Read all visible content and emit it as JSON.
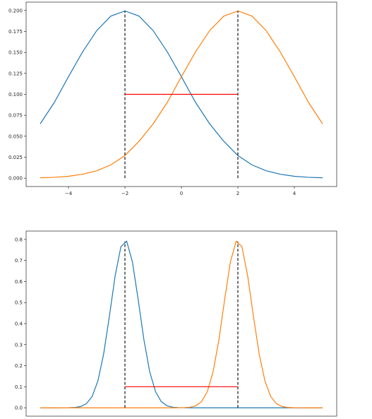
{
  "chart_data": [
    {
      "type": "line",
      "xlim": [
        -5.5,
        5.5
      ],
      "ylim": [
        -0.01,
        0.21
      ],
      "xticks": [
        -4,
        -2,
        0,
        2,
        4
      ],
      "yticks": [
        0.0,
        0.025,
        0.05,
        0.075,
        0.1,
        0.125,
        0.15,
        0.175,
        0.2
      ],
      "ytick_labels": [
        "0.000",
        "0.025",
        "0.050",
        "0.075",
        "0.100",
        "0.125",
        "0.150",
        "0.175",
        "0.200"
      ],
      "xtick_labels": [
        "−4",
        "−2",
        "0",
        "2",
        "4"
      ],
      "grid": false,
      "series": [
        {
          "color": "#1f77b4",
          "distribution": "normal",
          "mean": -2,
          "std": 2,
          "x": [
            -5.0,
            -4.5,
            -4.0,
            -3.5,
            -3.0,
            -2.5,
            -2.0,
            -1.5,
            -1.0,
            -0.5,
            0.0,
            0.5,
            1.0,
            1.5,
            2.0,
            2.5,
            3.0,
            3.5,
            4.0,
            4.5,
            5.0
          ],
          "y": [
            0.0648,
            0.0904,
            0.121,
            0.1506,
            0.176,
            0.1933,
            0.1995,
            0.1933,
            0.176,
            0.1506,
            0.121,
            0.0904,
            0.0648,
            0.044,
            0.027,
            0.0158,
            0.0088,
            0.0047,
            0.0022,
            0.001,
            0.0004
          ]
        },
        {
          "color": "#ff7f0e",
          "distribution": "normal",
          "mean": 2,
          "std": 2,
          "x": [
            -5.0,
            -4.5,
            -4.0,
            -3.5,
            -3.0,
            -2.5,
            -2.0,
            -1.5,
            -1.0,
            -0.5,
            0.0,
            0.5,
            1.0,
            1.5,
            2.0,
            2.5,
            3.0,
            3.5,
            4.0,
            4.5,
            5.0
          ],
          "y": [
            0.0004,
            0.001,
            0.0022,
            0.0047,
            0.0088,
            0.0158,
            0.027,
            0.044,
            0.0648,
            0.0904,
            0.121,
            0.1506,
            0.176,
            0.1933,
            0.1995,
            0.1933,
            0.176,
            0.1506,
            0.121,
            0.0904,
            0.0648
          ]
        }
      ],
      "vlines": [
        {
          "x": -2,
          "y0": 0,
          "y1": 0.1995,
          "color": "#000000",
          "style": "dashed"
        },
        {
          "x": 2,
          "y0": 0,
          "y1": 0.1995,
          "color": "#000000",
          "style": "dashed"
        }
      ],
      "hlines": [
        {
          "y": 0.1,
          "x0": -2,
          "x1": 2,
          "color": "#ff0000"
        }
      ]
    },
    {
      "type": "line",
      "xlim": [
        -5.5,
        5.5
      ],
      "ylim": [
        -0.04,
        0.84
      ],
      "yticks": [
        0.0,
        0.1,
        0.2,
        0.3,
        0.4,
        0.5,
        0.6,
        0.7,
        0.8
      ],
      "ytick_labels": [
        "0.0",
        "0.1",
        "0.2",
        "0.3",
        "0.4",
        "0.5",
        "0.6",
        "0.7",
        "0.8"
      ],
      "grid": false,
      "series": [
        {
          "color": "#1f77b4",
          "distribution": "normal",
          "mean": -2,
          "std": 0.5,
          "x_range": [
            -5,
            5
          ],
          "n_points": 50
        },
        {
          "color": "#ff7f0e",
          "distribution": "normal",
          "mean": 2,
          "std": 0.5,
          "x_range": [
            -5,
            5
          ],
          "n_points": 50
        }
      ],
      "vlines": [
        {
          "x": -2,
          "y0": 0,
          "y1": 0.79,
          "color": "#000000",
          "style": "dashed"
        },
        {
          "x": 2,
          "y0": 0,
          "y1": 0.79,
          "color": "#000000",
          "style": "dashed"
        }
      ],
      "hlines": [
        {
          "y": 0.1,
          "x0": -2,
          "x1": 2,
          "color": "#ff0000"
        }
      ]
    }
  ]
}
